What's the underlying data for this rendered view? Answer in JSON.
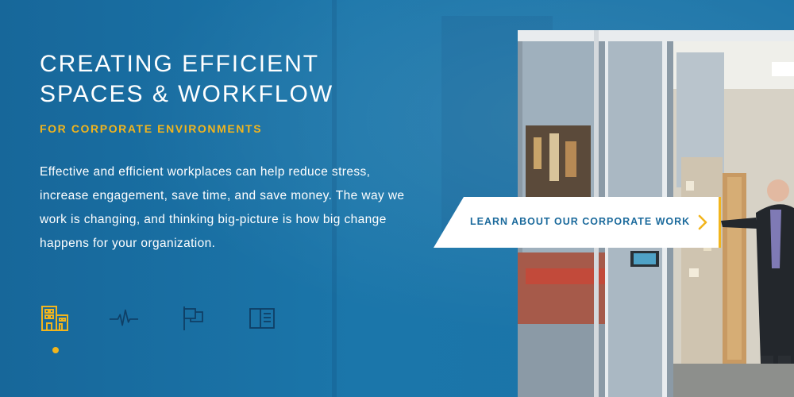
{
  "hero": {
    "title_line1": "CREATING EFFICIENT",
    "title_line2": "SPACES & WORKFLOW",
    "subtitle": "FOR CORPORATE ENVIRONMENTS",
    "body": "Effective and efficient workplaces can help reduce stress, increase engagement, save time, and save money. The way we work is changing, and thinking big-picture is how big change happens for your organization."
  },
  "cta": {
    "label": "LEARN ABOUT OUR CORPORATE WORK",
    "icon": "chevron-right-icon"
  },
  "icons": [
    {
      "name": "corporate-building-icon",
      "active": true
    },
    {
      "name": "healthcare-heartbeat-icon",
      "active": false
    },
    {
      "name": "flag-icon",
      "active": false
    },
    {
      "name": "education-book-icon",
      "active": false
    }
  ],
  "colors": {
    "background": "#1a74a6",
    "accent": "#f2b51d",
    "icon_inactive": "#0f3f66",
    "cta_text": "#1b6a9c"
  }
}
